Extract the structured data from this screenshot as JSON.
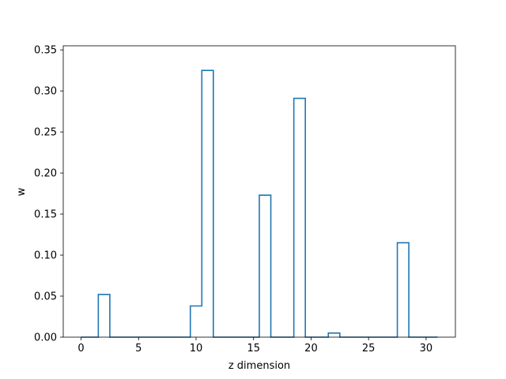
{
  "chart_data": {
    "type": "step",
    "xlabel": "z dimension",
    "ylabel": "w",
    "xlim": [
      -1.55,
      32.55
    ],
    "ylim": [
      0,
      0.355
    ],
    "x_ticks": [
      0,
      5,
      10,
      15,
      20,
      25,
      30
    ],
    "x_tick_labels": [
      "0",
      "5",
      "10",
      "15",
      "20",
      "25",
      "30"
    ],
    "y_ticks": [
      0.0,
      0.05,
      0.1,
      0.15,
      0.2,
      0.25,
      0.3,
      0.35
    ],
    "y_tick_labels": [
      "0.00",
      "0.05",
      "0.10",
      "0.15",
      "0.20",
      "0.25",
      "0.30",
      "0.35"
    ],
    "x": [
      0,
      1,
      2,
      3,
      4,
      5,
      6,
      7,
      8,
      9,
      10,
      11,
      12,
      13,
      14,
      15,
      16,
      17,
      18,
      19,
      20,
      21,
      22,
      23,
      24,
      25,
      26,
      27,
      28,
      29,
      30,
      31
    ],
    "values": [
      0,
      0,
      0.052,
      0,
      0,
      0,
      0,
      0,
      0,
      0,
      0.038,
      0.325,
      0,
      0,
      0,
      0,
      0.173,
      0,
      0,
      0.291,
      0,
      0,
      0.005,
      0,
      0,
      0,
      0,
      0,
      0.115,
      0,
      0,
      0
    ],
    "grid": false,
    "colors": {
      "line": "#1f77b4"
    }
  }
}
